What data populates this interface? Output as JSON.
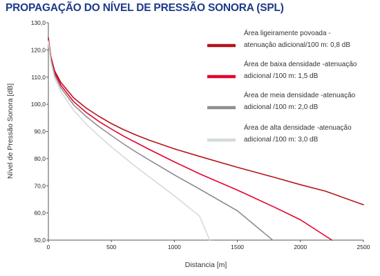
{
  "chart_data": {
    "type": "line",
    "title": "PROPAGAÇÃO DO NÍVEL DE PRESSÃO SONORA (SPL)",
    "xlabel": "Distancia [m]",
    "ylabel": "Nível de Pressão Sonora [dB]",
    "xlim": [
      0,
      2500
    ],
    "ylim": [
      50,
      130
    ],
    "x_ticks": [
      "0",
      "500",
      "1000",
      "1500",
      "2000",
      "2500"
    ],
    "y_ticks": [
      "50,0",
      "60,0",
      "70,0",
      "80,0",
      "90,0",
      "100,0",
      "110,0",
      "120,0",
      "130,0"
    ],
    "grid": false,
    "legend_position": "top-right",
    "series": [
      {
        "name_lines": [
          "Área ligeiramente povoada -",
          "atenuação adicional/100 m: 0,8 dB"
        ],
        "color": "#b5121b",
        "x": [
          0,
          20,
          50,
          100,
          200,
          300,
          400,
          500,
          600,
          700,
          800,
          1000,
          1200,
          1500,
          1800,
          2000,
          2200,
          2500
        ],
        "y": [
          124.5,
          117.5,
          112.3,
          108.0,
          102.4,
          98.6,
          95.6,
          92.9,
          90.6,
          88.6,
          86.8,
          83.6,
          80.8,
          76.8,
          73.0,
          70.4,
          68.0,
          63.0
        ]
      },
      {
        "name_lines": [
          "Área de baixa densidade -atenuação",
          "adicional /100 m: 1,5 dB"
        ],
        "color": "#e4002b",
        "x": [
          0,
          20,
          50,
          100,
          200,
          300,
          400,
          500,
          600,
          700,
          800,
          1000,
          1200,
          1500,
          1800,
          2000,
          2250
        ],
        "y": [
          124.0,
          117.0,
          111.7,
          107.0,
          101.0,
          97.0,
          93.7,
          90.9,
          88.2,
          85.8,
          83.4,
          78.8,
          74.4,
          68.4,
          62.0,
          57.5,
          50.0
        ]
      },
      {
        "name_lines": [
          "Área de meia densidade -atenuação",
          "adicional /100 m: 2,0 dB"
        ],
        "color": "#8e8e8e",
        "x": [
          0,
          20,
          50,
          100,
          200,
          300,
          400,
          500,
          600,
          700,
          800,
          1000,
          1200,
          1500,
          1780
        ],
        "y": [
          123.5,
          116.3,
          110.8,
          106.0,
          99.8,
          95.5,
          91.8,
          88.5,
          85.3,
          82.3,
          79.5,
          74.0,
          68.8,
          60.8,
          50.0
        ]
      },
      {
        "name_lines": [
          "Área de alta densidade -atenuação",
          "adicional /100 m: 3,0 dB"
        ],
        "color": "#d4dadc",
        "x": [
          0,
          20,
          50,
          100,
          200,
          300,
          400,
          500,
          600,
          700,
          800,
          1000,
          1200,
          1280
        ],
        "y": [
          123.0,
          115.5,
          109.6,
          104.6,
          97.8,
          92.8,
          88.4,
          84.3,
          80.5,
          76.8,
          73.3,
          66.3,
          58.8,
          50.0
        ]
      }
    ]
  }
}
